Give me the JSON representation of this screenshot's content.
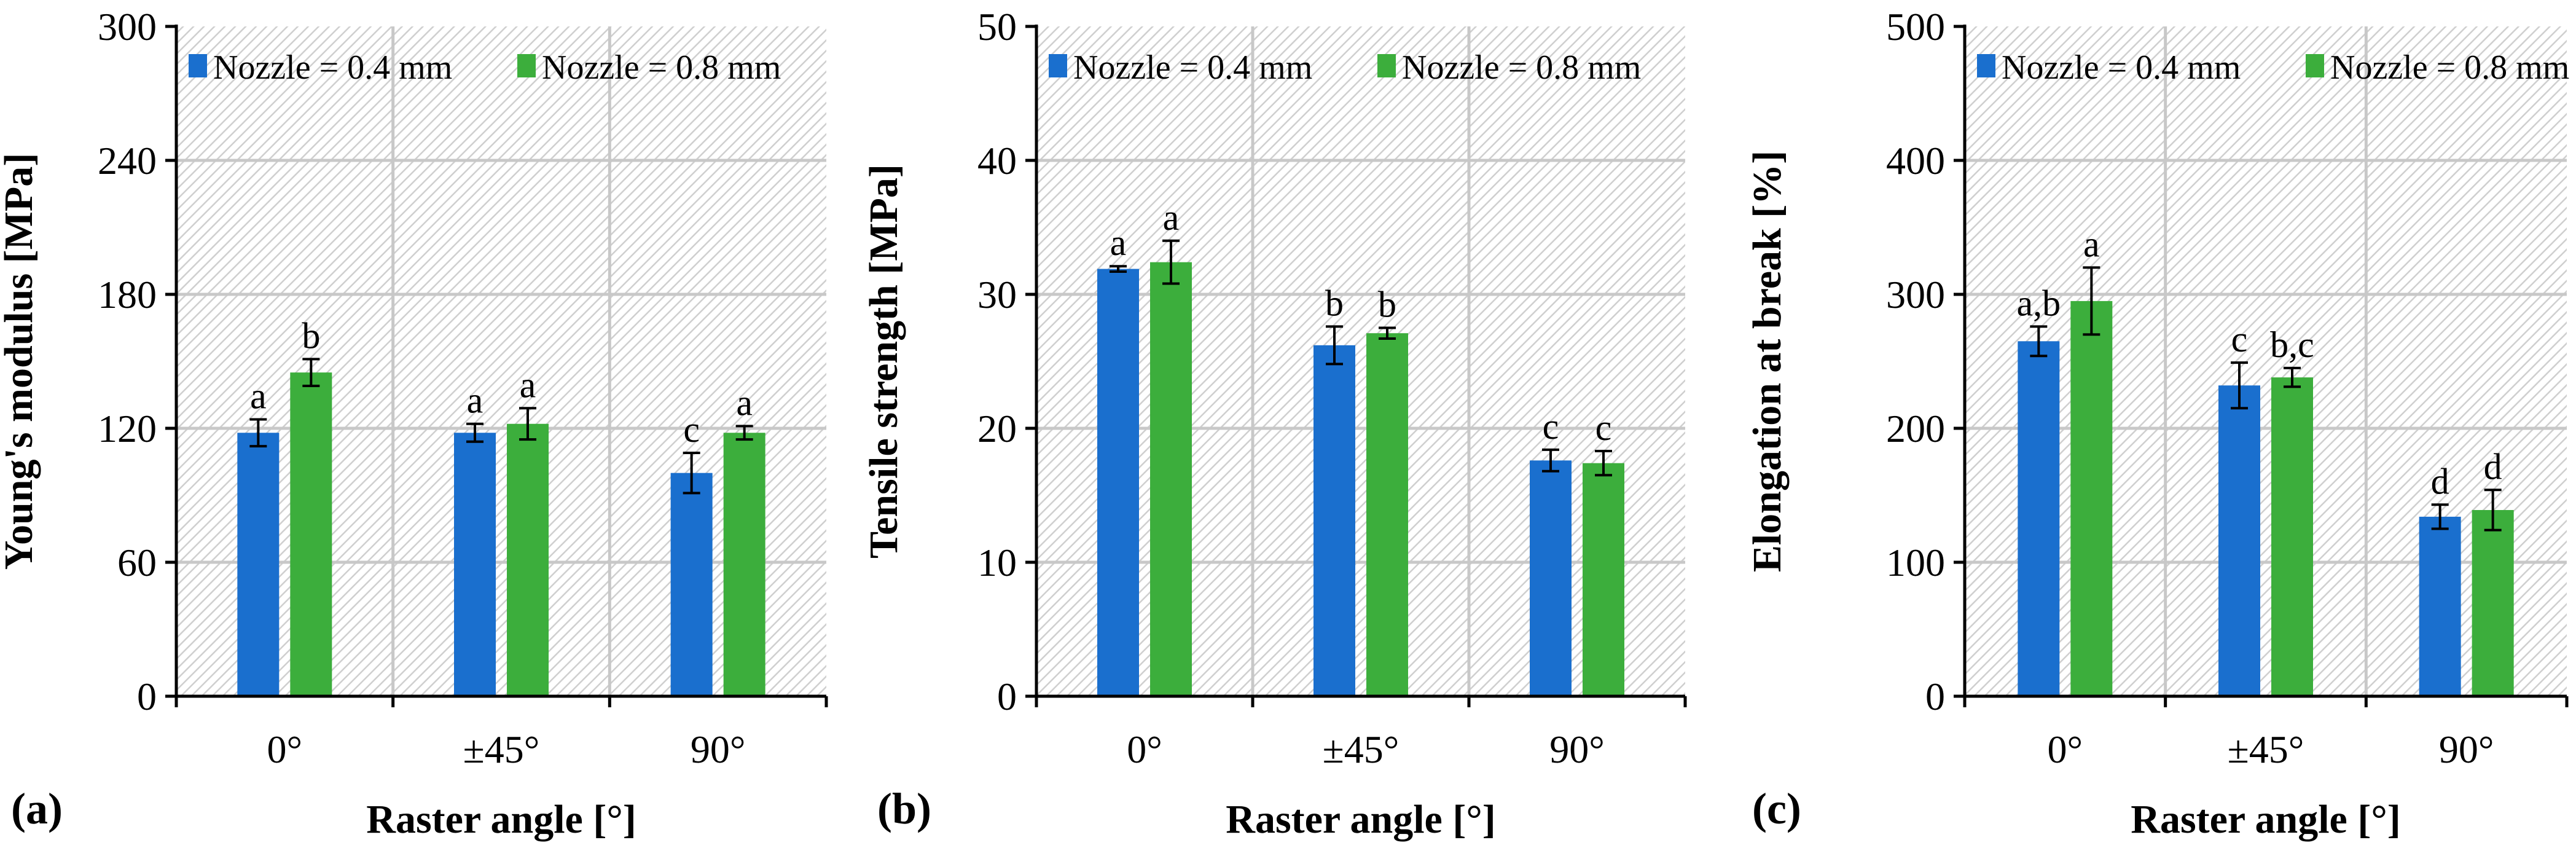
{
  "colors": {
    "nozzle_04": "#1a6fce",
    "nozzle_08": "#3cae3c"
  },
  "chart_data": [
    {
      "type": "bar",
      "panel": "(a)",
      "title": "",
      "xlabel": "Raster angle [°]",
      "ylabel": "Young's modulus [MPa]",
      "ylim": [
        0,
        300
      ],
      "yticks": [
        "0",
        "60",
        "120",
        "180",
        "240",
        "300"
      ],
      "grid": true,
      "legend": "top",
      "categories": [
        "0°",
        "±45°",
        "90°"
      ],
      "series": [
        {
          "name": "Nozzle = 0.4 mm",
          "values": [
            118,
            118,
            100
          ],
          "errors": [
            6,
            4,
            9
          ],
          "labels": [
            "a",
            "a",
            "c"
          ]
        },
        {
          "name": "Nozzle = 0.8 mm",
          "values": [
            145,
            122,
            118
          ],
          "errors": [
            6,
            7,
            3
          ],
          "labels": [
            "b",
            "a",
            "a"
          ]
        }
      ]
    },
    {
      "type": "bar",
      "panel": "(b)",
      "title": "",
      "xlabel": "Raster angle [°]",
      "ylabel": "Tensile strength [MPa]",
      "ylim": [
        0,
        50
      ],
      "yticks": [
        "0",
        "10",
        "20",
        "30",
        "40",
        "50"
      ],
      "grid": true,
      "legend": "top",
      "categories": [
        "0°",
        "±45°",
        "90°"
      ],
      "series": [
        {
          "name": "Nozzle = 0.4 mm",
          "values": [
            31.9,
            26.2,
            17.6
          ],
          "errors": [
            0.2,
            1.4,
            0.8
          ],
          "labels": [
            "a",
            "b",
            "c"
          ]
        },
        {
          "name": "Nozzle = 0.8 mm",
          "values": [
            32.4,
            27.1,
            17.4
          ],
          "errors": [
            1.6,
            0.4,
            0.9
          ],
          "labels": [
            "a",
            "b",
            "c"
          ]
        }
      ]
    },
    {
      "type": "bar",
      "panel": "(c)",
      "title": "",
      "xlabel": "Raster angle [°]",
      "ylabel": "Elongation at break [%]",
      "ylim": [
        0,
        500
      ],
      "yticks": [
        "0",
        "100",
        "200",
        "300",
        "400",
        "500"
      ],
      "grid": true,
      "legend": "top",
      "categories": [
        "0°",
        "±45°",
        "90°"
      ],
      "series": [
        {
          "name": "Nozzle = 0.4 mm",
          "values": [
            265,
            232,
            134
          ],
          "errors": [
            11,
            17,
            9
          ],
          "labels": [
            "a,b",
            "c",
            "d"
          ]
        },
        {
          "name": "Nozzle = 0.8 mm",
          "values": [
            295,
            238,
            139
          ],
          "errors": [
            25,
            7,
            15
          ],
          "labels": [
            "a",
            "b,c",
            "d"
          ]
        }
      ]
    }
  ]
}
